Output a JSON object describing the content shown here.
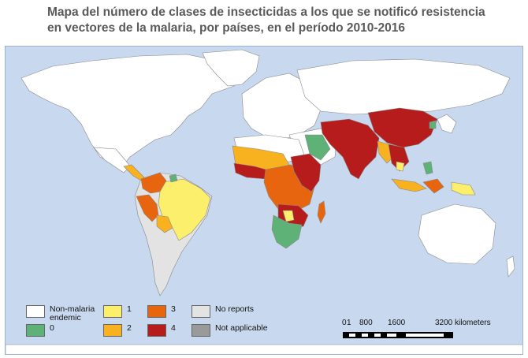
{
  "title": {
    "line1": "Mapa del número de clases de insecticidas a los que se notificó resistencia",
    "line2": "en vectores de la malaria, por países, en el período 2010-2016"
  },
  "colors": {
    "ocean": "#c8d8ee",
    "non_malaria": "#ffffff",
    "class_0": "#5fb277",
    "class_1": "#fcef6c",
    "class_2": "#f9b21f",
    "class_3": "#e8650f",
    "class_4": "#b71c1c",
    "no_reports": "#e3e3e3",
    "not_applicable": "#9a9a9a"
  },
  "legend": [
    {
      "key": "non_malaria",
      "label": "Non-malaria endemic"
    },
    {
      "key": "class_0",
      "label": "0"
    },
    {
      "key": "class_1",
      "label": "1"
    },
    {
      "key": "class_2",
      "label": "2"
    },
    {
      "key": "class_3",
      "label": "3"
    },
    {
      "key": "class_4",
      "label": "4"
    },
    {
      "key": "no_reports",
      "label": "No reports"
    },
    {
      "key": "not_applicable",
      "label": "Not applicable"
    }
  ],
  "scale": {
    "tick_0": "0",
    "tick_1": "1",
    "tick_800": "800",
    "tick_1600": "1600",
    "tick_3200": "3200 kilometers"
  }
}
